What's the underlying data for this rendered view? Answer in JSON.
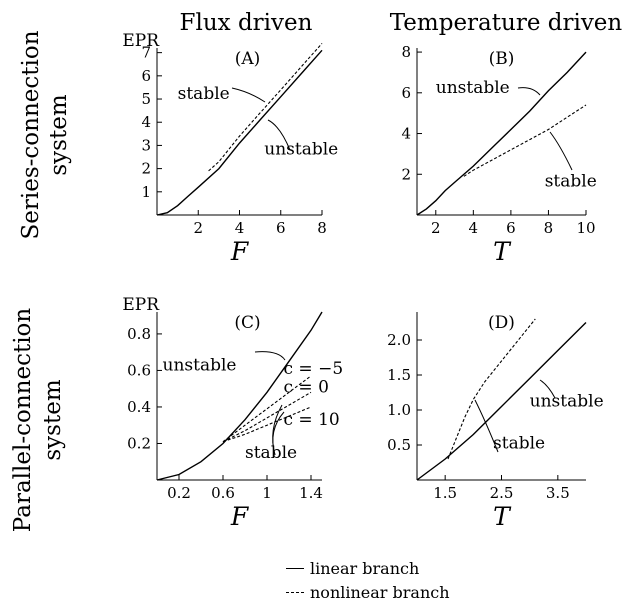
{
  "column_titles": [
    "Flux driven",
    "Temperature driven"
  ],
  "row_titles": [
    {
      "line1": "Series-connection",
      "line2": "system"
    },
    {
      "line1": "Parallel-connection",
      "line2": "system"
    }
  ],
  "legend": {
    "solid": "linear branch",
    "dashed": "nonlinear branch"
  },
  "chart_data": [
    {
      "type": "line",
      "panel_label": "(A)",
      "xlabel": "F",
      "ylabel": "EPR",
      "xlim": [
        0,
        8
      ],
      "ylim": [
        0,
        7.2
      ],
      "xticks": [
        2,
        4,
        6,
        8
      ],
      "yticks": [
        1,
        2,
        3,
        4,
        5,
        6,
        7
      ],
      "series": [
        {
          "style": "solid",
          "x": [
            0,
            0.5,
            1,
            1.5,
            2,
            3,
            4,
            5,
            6,
            7,
            8
          ],
          "y": [
            0,
            0.1,
            0.4,
            0.8,
            1.2,
            2.0,
            3.1,
            4.1,
            5.1,
            6.1,
            7.1
          ]
        },
        {
          "style": "dashed",
          "x": [
            2.5,
            3,
            4,
            5,
            6,
            7,
            8
          ],
          "y": [
            1.9,
            2.3,
            3.4,
            4.4,
            5.4,
            6.4,
            7.4
          ]
        }
      ],
      "annotations": [
        {
          "text": "stable",
          "x": 1.0,
          "y": 5.0
        },
        {
          "text": "unstable",
          "x": 5.2,
          "y": 2.6
        }
      ]
    },
    {
      "type": "line",
      "panel_label": "(B)",
      "xlabel": "T",
      "ylabel": "",
      "xlim": [
        1,
        10
      ],
      "ylim": [
        0,
        8.2
      ],
      "xticks": [
        2,
        4,
        6,
        8,
        10
      ],
      "yticks": [
        2,
        4,
        6,
        8
      ],
      "series": [
        {
          "style": "solid",
          "x": [
            1,
            1.5,
            2,
            2.5,
            3,
            4,
            5,
            6,
            7,
            8,
            9,
            10
          ],
          "y": [
            0,
            0.3,
            0.7,
            1.2,
            1.6,
            2.4,
            3.3,
            4.2,
            5.1,
            6.1,
            7.0,
            8.0
          ]
        },
        {
          "style": "dashed",
          "x": [
            3.5,
            4,
            5,
            6,
            7,
            8,
            9,
            10
          ],
          "y": [
            1.9,
            2.2,
            2.7,
            3.2,
            3.7,
            4.2,
            4.8,
            5.4
          ]
        }
      ],
      "annotations": [
        {
          "text": "unstable",
          "x": 2.0,
          "y": 6.0
        },
        {
          "text": "stable",
          "x": 7.8,
          "y": 1.4
        }
      ]
    },
    {
      "type": "line",
      "panel_label": "(C)",
      "xlabel": "F",
      "ylabel": "EPR",
      "xlim": [
        0,
        1.5
      ],
      "ylim": [
        0,
        0.92
      ],
      "xticks": [
        0.2,
        0.6,
        1.0,
        1.4
      ],
      "yticks": [
        0.2,
        0.4,
        0.6,
        0.8
      ],
      "series": [
        {
          "style": "solid",
          "x": [
            0,
            0.2,
            0.4,
            0.6,
            0.8,
            1.0,
            1.2,
            1.4,
            1.5
          ],
          "y": [
            0,
            0.03,
            0.1,
            0.2,
            0.33,
            0.48,
            0.65,
            0.82,
            0.92
          ]
        },
        {
          "style": "dashed",
          "name": "c = −5",
          "x": [
            0.6,
            0.8,
            1.0,
            1.2,
            1.4
          ],
          "y": [
            0.21,
            0.3,
            0.39,
            0.48,
            0.57
          ]
        },
        {
          "style": "dashed",
          "name": "c = 0",
          "x": [
            0.6,
            0.8,
            1.0,
            1.2,
            1.4
          ],
          "y": [
            0.21,
            0.27,
            0.34,
            0.41,
            0.48
          ]
        },
        {
          "style": "dashed",
          "name": "c = 10",
          "x": [
            0.6,
            0.8,
            1.0,
            1.2,
            1.4
          ],
          "y": [
            0.21,
            0.25,
            0.3,
            0.35,
            0.4
          ]
        }
      ],
      "annotations": [
        {
          "text": "unstable",
          "x": 0.05,
          "y": 0.6
        },
        {
          "text": "c = −5",
          "x": 1.15,
          "y": 0.58
        },
        {
          "text": "c = 0",
          "x": 1.15,
          "y": 0.48
        },
        {
          "text": "c = 10",
          "x": 1.15,
          "y": 0.3
        },
        {
          "text": "stable",
          "x": 0.8,
          "y": 0.12
        }
      ]
    },
    {
      "type": "line",
      "panel_label": "(D)",
      "xlabel": "T",
      "ylabel": "",
      "xlim": [
        1,
        4
      ],
      "ylim": [
        0,
        2.4
      ],
      "xticks": [
        1.5,
        2.5,
        3.5
      ],
      "yticks": [
        0.5,
        1.0,
        1.5,
        2.0
      ],
      "series": [
        {
          "style": "solid",
          "x": [
            1,
            1.5,
            2,
            2.5,
            3,
            3.5,
            4
          ],
          "y": [
            0,
            0.3,
            0.65,
            1.05,
            1.45,
            1.85,
            2.25
          ]
        },
        {
          "style": "dashed",
          "x": [
            1.55,
            1.7,
            1.85,
            2,
            2.2,
            2.5,
            2.8,
            3.1
          ],
          "y": [
            0.3,
            0.6,
            0.9,
            1.15,
            1.4,
            1.7,
            2.0,
            2.3
          ]
        }
      ],
      "annotations": [
        {
          "text": "unstable",
          "x": 3.0,
          "y": 1.05
        },
        {
          "text": "stable",
          "x": 2.35,
          "y": 0.45
        }
      ]
    }
  ]
}
